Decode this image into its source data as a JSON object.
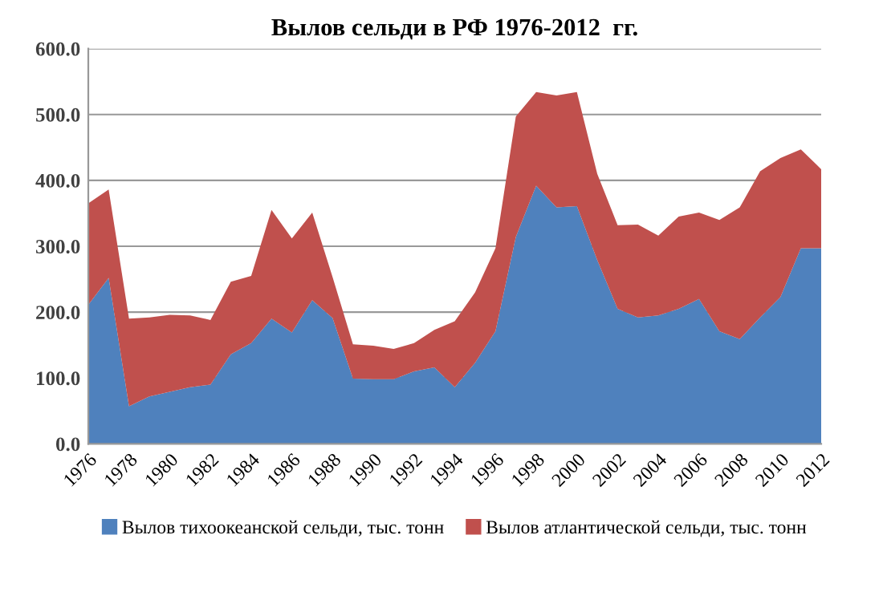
{
  "chart_data": {
    "type": "area",
    "title": "Вылов сельди в РФ 1976-2012  гг.",
    "stacked": true,
    "categories": [
      "1976",
      null,
      "1978",
      null,
      "1980",
      null,
      "1982",
      null,
      "1984",
      null,
      "1986",
      null,
      "1988",
      null,
      "1990",
      null,
      "1992",
      null,
      "1994",
      null,
      "1996",
      null,
      "1998",
      null,
      "2000",
      null,
      "2002",
      null,
      "2004",
      null,
      "2006",
      null,
      "2008",
      null,
      "2010",
      null,
      "2012"
    ],
    "series": [
      {
        "name": "Вылов тихоокеанской сельди, тыс. тонн",
        "color": "#4f81bd",
        "values": [
          211,
          252,
          57,
          72,
          79,
          86,
          90,
          136,
          153,
          190,
          169,
          218,
          191,
          99,
          98,
          98,
          110,
          116,
          86,
          123,
          171,
          314,
          392,
          359,
          361,
          279,
          205,
          192,
          195,
          205,
          220,
          171,
          159,
          192,
          223,
          297,
          297
        ]
      },
      {
        "name": "Вылов атлантической сельди, тыс. тонн",
        "color": "#c0504d",
        "values": [
          154,
          134,
          133,
          120,
          117,
          109,
          98,
          110,
          102,
          165,
          143,
          133,
          62,
          52,
          51,
          46,
          43,
          57,
          100,
          107,
          126,
          183,
          142,
          170,
          173,
          131,
          127,
          141,
          121,
          140,
          131,
          169,
          200,
          222,
          211,
          150,
          120
        ]
      }
    ],
    "ylim": [
      0,
      600
    ],
    "yticks": [
      {
        "value": 0,
        "label": "0.0"
      },
      {
        "value": 100,
        "label": "100.0"
      },
      {
        "value": 200,
        "label": "200.0"
      },
      {
        "value": 300,
        "label": "300.0"
      },
      {
        "value": 400,
        "label": "400.0"
      },
      {
        "value": 500,
        "label": "500.0"
      },
      {
        "value": 600,
        "label": "600.0"
      }
    ],
    "grid": "y",
    "legend": "bottom"
  }
}
